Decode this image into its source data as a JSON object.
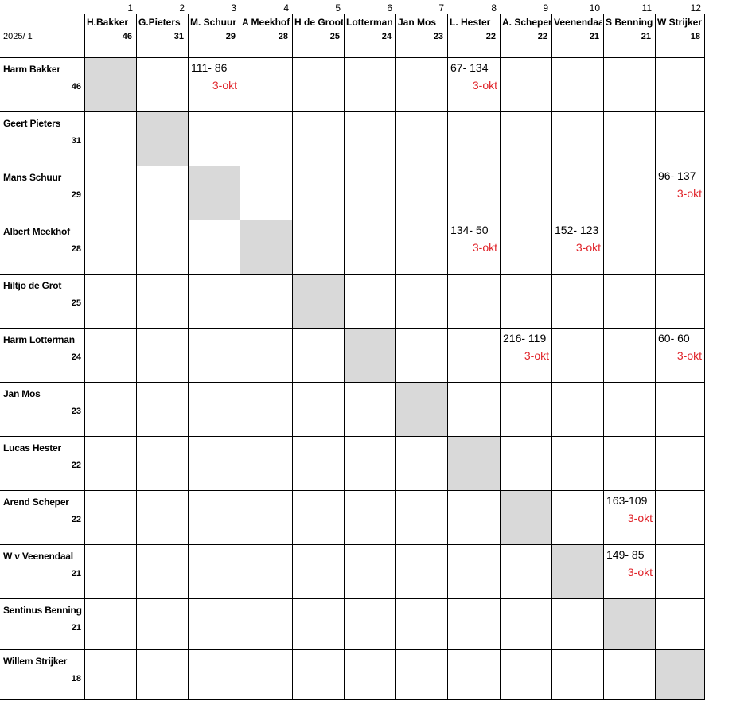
{
  "season": "2025/ 1",
  "columns": [
    {
      "num": "1",
      "name": "H.Bakker",
      "score": "46"
    },
    {
      "num": "2",
      "name": "G.Pieters",
      "score": "31"
    },
    {
      "num": "3",
      "name": "M. Schuur",
      "score": "29"
    },
    {
      "num": "4",
      "name": "A Meekhof",
      "score": "28"
    },
    {
      "num": "5",
      "name": "H de Groot",
      "score": "25"
    },
    {
      "num": "6",
      "name": "Lotterman",
      "score": "24"
    },
    {
      "num": "7",
      "name": "Jan Mos",
      "score": "23"
    },
    {
      "num": "8",
      "name": "L. Hester",
      "score": "22"
    },
    {
      "num": "9",
      "name": "A. Scheper",
      "score": "22"
    },
    {
      "num": "10",
      "name": "Veenendaal",
      "score": "21"
    },
    {
      "num": "11",
      "name": "S Benning",
      "score": "21"
    },
    {
      "num": "12",
      "name": "W Strijker",
      "score": "18"
    }
  ],
  "rows": [
    {
      "name": "Harm Bakker",
      "score": "46"
    },
    {
      "name": "Geert Pieters",
      "score": "31"
    },
    {
      "name": "Mans Schuur",
      "score": "29"
    },
    {
      "name": "Albert Meekhof",
      "score": "28"
    },
    {
      "name": "Hiltjo de Grot",
      "score": "25"
    },
    {
      "name": "Harm Lotterman",
      "score": "24"
    },
    {
      "name": "Jan Mos",
      "score": "23"
    },
    {
      "name": "Lucas Hester",
      "score": "22"
    },
    {
      "name": "Arend Scheper",
      "score": "22"
    },
    {
      "name": "W v Veenendaal",
      "score": "21"
    },
    {
      "name": "Sentinus Benning",
      "score": "21"
    },
    {
      "name": "Willem Strijker",
      "score": "18"
    }
  ],
  "results": [
    {
      "row": 0,
      "col": 2,
      "score": "111- 86",
      "date": "3-okt"
    },
    {
      "row": 0,
      "col": 7,
      "score": "67- 134",
      "date": "3-okt"
    },
    {
      "row": 2,
      "col": 11,
      "score": "96- 137",
      "date": "3-okt"
    },
    {
      "row": 3,
      "col": 7,
      "score": "134- 50",
      "date": "3-okt"
    },
    {
      "row": 3,
      "col": 9,
      "score": "152- 123",
      "date": "3-okt"
    },
    {
      "row": 5,
      "col": 8,
      "score": "216- 119",
      "date": "3-okt"
    },
    {
      "row": 5,
      "col": 11,
      "score": "60- 60",
      "date": "3-okt"
    },
    {
      "row": 8,
      "col": 10,
      "score": "163-109",
      "date": "3-okt"
    },
    {
      "row": 9,
      "col": 10,
      "score": "149- 85",
      "date": "3-okt"
    }
  ]
}
